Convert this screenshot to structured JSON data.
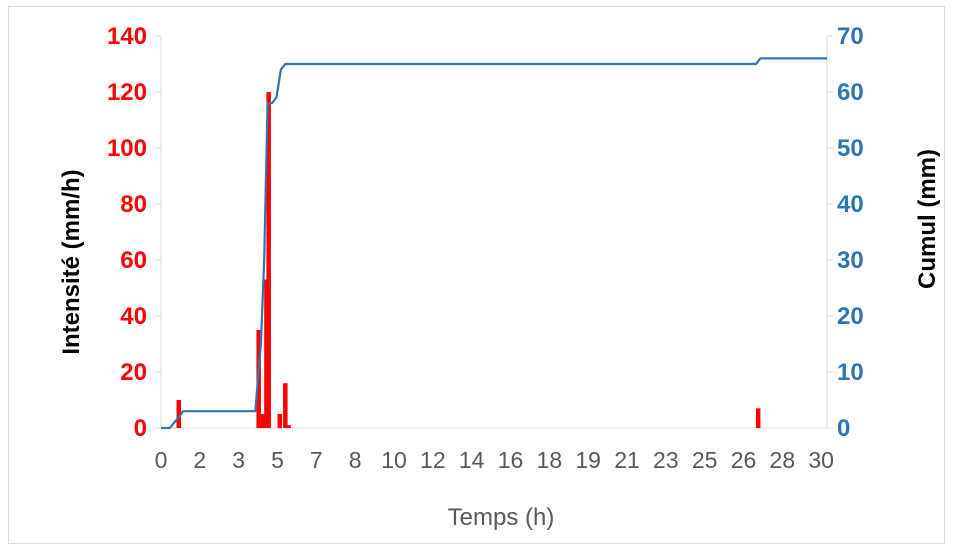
{
  "chart_data": {
    "type": "bar+line",
    "title": "",
    "xlabel": "Temps (h)",
    "ylabel_left": "Intensité (mm/h)",
    "ylabel_right": "Cumul (mm)",
    "x_tick_labels": [
      "0",
      "2",
      "3",
      "5",
      "7",
      "8",
      "10",
      "12",
      "14",
      "16",
      "18",
      "19",
      "21",
      "23",
      "25",
      "26",
      "28",
      "30"
    ],
    "xlim": [
      0,
      30
    ],
    "ylim_left": [
      0,
      140
    ],
    "ylim_right": [
      0,
      70
    ],
    "y_ticks_left": [
      "0",
      "20",
      "40",
      "60",
      "80",
      "100",
      "120",
      "140"
    ],
    "y_ticks_right": [
      "0",
      "10",
      "20",
      "30",
      "40",
      "50",
      "60",
      "70"
    ],
    "grid": false,
    "colors": {
      "intensity": "#ff0000",
      "cumul": "#2e75b6",
      "axis_left": "#ff0000",
      "axis_right": "#2e75b6",
      "ticks": "#595959"
    },
    "series": [
      {
        "name": "Intensité (mm/h)",
        "type": "bar",
        "axis": "left",
        "x": [
          0.8,
          4.4,
          4.6,
          4.75,
          4.85,
          5.35,
          5.6,
          5.75,
          26.9
        ],
        "values": [
          10,
          35,
          5,
          53,
          120,
          5,
          16,
          1,
          7
        ]
      },
      {
        "name": "Cumul (mm)",
        "type": "line",
        "axis": "right",
        "x": [
          0,
          0.4,
          0.8,
          1.0,
          4.25,
          4.5,
          4.65,
          4.8,
          5.0,
          5.2,
          5.4,
          5.6,
          6.0,
          26.8,
          27.0,
          30
        ],
        "values": [
          0,
          0,
          2,
          3,
          3,
          15,
          30,
          58,
          58,
          59,
          64,
          65,
          65,
          65,
          66,
          66
        ]
      }
    ]
  }
}
